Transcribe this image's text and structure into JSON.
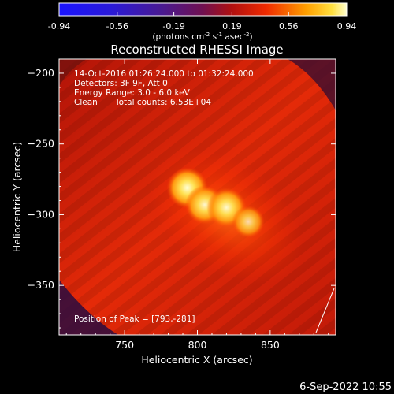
{
  "colorbar": {
    "ticks": [
      "-0.94",
      "-0.56",
      "-0.19",
      "0.19",
      "0.56",
      "0.94"
    ],
    "units_prefix": "(photons cm",
    "units_exp1": "-2",
    "units_mid": " s",
    "units_exp2": "-1",
    "units_mid2": " asec",
    "units_exp3": "-2",
    "units_suffix": ")"
  },
  "footer_timestamp": "6-Sep-2022 10:55",
  "chart_data": {
    "type": "heatmap",
    "title": "Reconstructed RHESSI Image",
    "xlabel": "Heliocentric X (arcsec)",
    "ylabel": "Heliocentric Y (arcsec)",
    "xlim": [
      705,
      895
    ],
    "ylim": [
      -385,
      -190
    ],
    "xticks": [
      750,
      800,
      850
    ],
    "yticks": [
      -200,
      -250,
      -300,
      -350
    ],
    "xtick_labels": [
      "750",
      "800",
      "850"
    ],
    "ytick_labels": [
      "−200",
      "−250",
      "−300",
      "−350"
    ],
    "colorbar_range": [
      -0.94,
      0.94
    ],
    "annotations": [
      "14-Oct-2016 01:26:24.000 to 01:32:24.000",
      "Detectors: 3F 9F, Att 0",
      "Energy Range: 3.0 - 6.0 keV",
      "Clean",
      "Total counts: 6.53E+04"
    ],
    "peak_label": "Position of Peak = [793,-281]",
    "peak": [
      793,
      -281
    ],
    "sources": [
      {
        "x": 793,
        "y": -281,
        "level": 1.0
      },
      {
        "x": 805,
        "y": -293,
        "level": 0.9
      },
      {
        "x": 820,
        "y": -295,
        "level": 0.93
      },
      {
        "x": 835,
        "y": -305,
        "level": 0.6
      }
    ]
  }
}
